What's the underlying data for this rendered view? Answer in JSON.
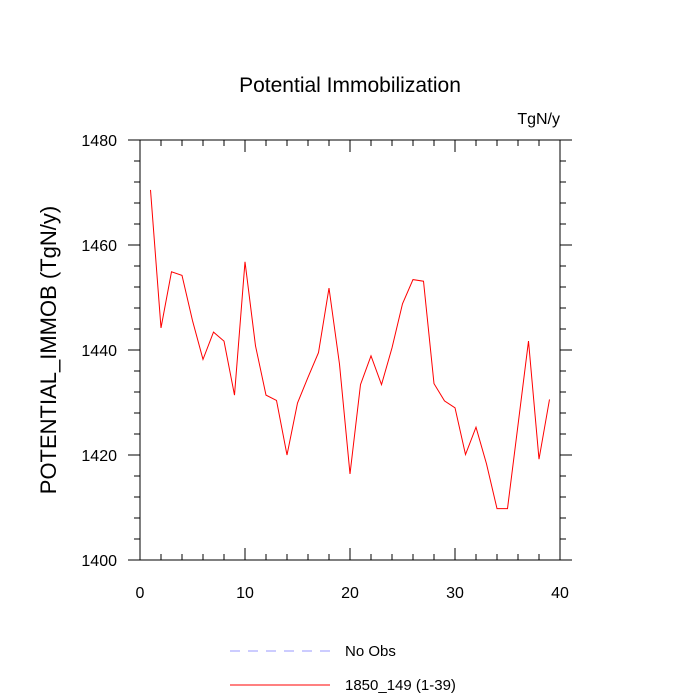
{
  "chart_data": {
    "type": "line",
    "title": "Potential Immobilization",
    "units": "TgN/y",
    "xlabel": "",
    "ylabel": "POTENTIAL_IMMOB  (TgN/y)",
    "xlim": [
      0,
      40
    ],
    "ylim": [
      1400,
      1480
    ],
    "xticks": [
      0,
      10,
      20,
      30,
      40
    ],
    "yticks": [
      1400,
      1420,
      1440,
      1460,
      1480
    ],
    "grid": false,
    "legend_position": "bottom",
    "series": [
      {
        "name": "1850_149 (1-39)",
        "color": "#ff0000",
        "style": "solid",
        "x": [
          1,
          2,
          3,
          4,
          5,
          6,
          7,
          8,
          9,
          10,
          11,
          12,
          13,
          14,
          15,
          16,
          17,
          18,
          19,
          20,
          21,
          22,
          23,
          24,
          25,
          26,
          27,
          28,
          29,
          30,
          31,
          32,
          33,
          34,
          35,
          36,
          37,
          38,
          39
        ],
        "values": [
          1470.5,
          1444.2,
          1454.9,
          1454.2,
          1445.6,
          1438.2,
          1443.4,
          1441.7,
          1431.4,
          1456.8,
          1440.8,
          1431.4,
          1430.4,
          1420.0,
          1429.9,
          1434.8,
          1439.5,
          1451.8,
          1437.3,
          1416.4,
          1433.4,
          1438.9,
          1433.4,
          1440.4,
          1448.8,
          1453.4,
          1453.1,
          1433.6,
          1430.3,
          1429.0,
          1420.1,
          1425.3,
          1418.3,
          1409.8,
          1409.8,
          1425.7,
          1441.7,
          1419.2,
          1430.6
        ]
      }
    ],
    "legend": [
      {
        "label": "No Obs",
        "color": "#9999ff",
        "style": "dashed"
      },
      {
        "label": "1850_149 (1-39)",
        "color": "#ff0000",
        "style": "solid"
      }
    ]
  }
}
